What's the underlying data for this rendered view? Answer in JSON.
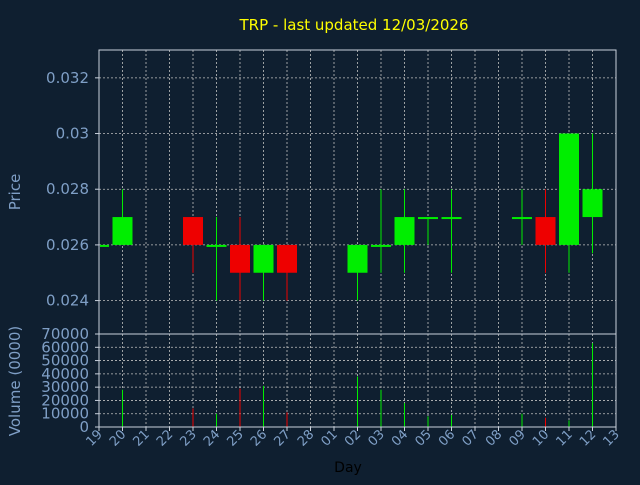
{
  "chart_data": [
    {
      "type": "candlestick",
      "title": "TRP - last updated 12/03/2026",
      "ylabel": "Price",
      "ylim": [
        0.0228,
        0.033
      ],
      "yticks": [
        0.024,
        0.026,
        0.028,
        0.03,
        0.032
      ],
      "ytick_labels": [
        "0.024",
        "0.026",
        "0.028",
        "0.03",
        "0.032"
      ],
      "grid": true,
      "categories": [
        "19",
        "20",
        "21",
        "22",
        "23",
        "24",
        "25",
        "26",
        "27",
        "28",
        "01",
        "02",
        "03",
        "04",
        "05",
        "06",
        "07",
        "08",
        "09",
        "10",
        "11",
        "12",
        "13"
      ],
      "candles": [
        {
          "day": "19",
          "open": 0.026,
          "close": 0.026,
          "high": 0.026,
          "low": 0.026
        },
        {
          "day": "20",
          "open": 0.026,
          "close": 0.027,
          "high": 0.028,
          "low": 0.026
        },
        {
          "day": "23",
          "open": 0.027,
          "close": 0.026,
          "high": 0.027,
          "low": 0.025
        },
        {
          "day": "24",
          "open": 0.026,
          "close": 0.026,
          "high": 0.027,
          "low": 0.024
        },
        {
          "day": "25",
          "open": 0.026,
          "close": 0.025,
          "high": 0.027,
          "low": 0.024
        },
        {
          "day": "26",
          "open": 0.025,
          "close": 0.026,
          "high": 0.026,
          "low": 0.024
        },
        {
          "day": "27",
          "open": 0.026,
          "close": 0.025,
          "high": 0.026,
          "low": 0.024
        },
        {
          "day": "02",
          "open": 0.025,
          "close": 0.026,
          "high": 0.026,
          "low": 0.024
        },
        {
          "day": "03",
          "open": 0.026,
          "close": 0.026,
          "high": 0.028,
          "low": 0.025
        },
        {
          "day": "04",
          "open": 0.026,
          "close": 0.027,
          "high": 0.028,
          "low": 0.025
        },
        {
          "day": "05",
          "open": 0.027,
          "close": 0.027,
          "high": 0.027,
          "low": 0.026
        },
        {
          "day": "06",
          "open": 0.027,
          "close": 0.027,
          "high": 0.028,
          "low": 0.025
        },
        {
          "day": "09",
          "open": 0.027,
          "close": 0.027,
          "high": 0.028,
          "low": 0.026
        },
        {
          "day": "10",
          "open": 0.027,
          "close": 0.026,
          "high": 0.028,
          "low": 0.025
        },
        {
          "day": "11",
          "open": 0.026,
          "close": 0.03,
          "high": 0.03,
          "low": 0.025
        },
        {
          "day": "12",
          "open": 0.027,
          "close": 0.028,
          "high": 0.03,
          "low": 0.0257
        }
      ]
    },
    {
      "type": "bar",
      "xlabel": "Day",
      "ylabel": "Volume (0000)",
      "ylim": [
        0,
        70000
      ],
      "yticks": [
        0,
        10000,
        20000,
        30000,
        40000,
        50000,
        60000,
        70000
      ],
      "ytick_labels": [
        "0",
        "10000",
        "20000",
        "30000",
        "40000",
        "50000",
        "60000",
        "70000"
      ],
      "volumes": [
        {
          "day": "20",
          "value": 28000,
          "direction": "up"
        },
        {
          "day": "23",
          "value": 14000,
          "direction": "down"
        },
        {
          "day": "24",
          "value": 10000,
          "direction": "up"
        },
        {
          "day": "25",
          "value": 29000,
          "direction": "down"
        },
        {
          "day": "26",
          "value": 31000,
          "direction": "up"
        },
        {
          "day": "27",
          "value": 11000,
          "direction": "down"
        },
        {
          "day": "02",
          "value": 38000,
          "direction": "up"
        },
        {
          "day": "03",
          "value": 28000,
          "direction": "up"
        },
        {
          "day": "04",
          "value": 18000,
          "direction": "up"
        },
        {
          "day": "05",
          "value": 8000,
          "direction": "up"
        },
        {
          "day": "06",
          "value": 9000,
          "direction": "up"
        },
        {
          "day": "09",
          "value": 10000,
          "direction": "up"
        },
        {
          "day": "10",
          "value": 7000,
          "direction": "down"
        },
        {
          "day": "11",
          "value": 5000,
          "direction": "up"
        },
        {
          "day": "12",
          "value": 63000,
          "direction": "up"
        }
      ]
    }
  ],
  "colors": {
    "background": "#0f1f30",
    "title": "#ffff00",
    "axis_text": "#7f9fc6",
    "up": "#00ee00",
    "down": "#ee0000",
    "grid": "#c0c0c0"
  }
}
